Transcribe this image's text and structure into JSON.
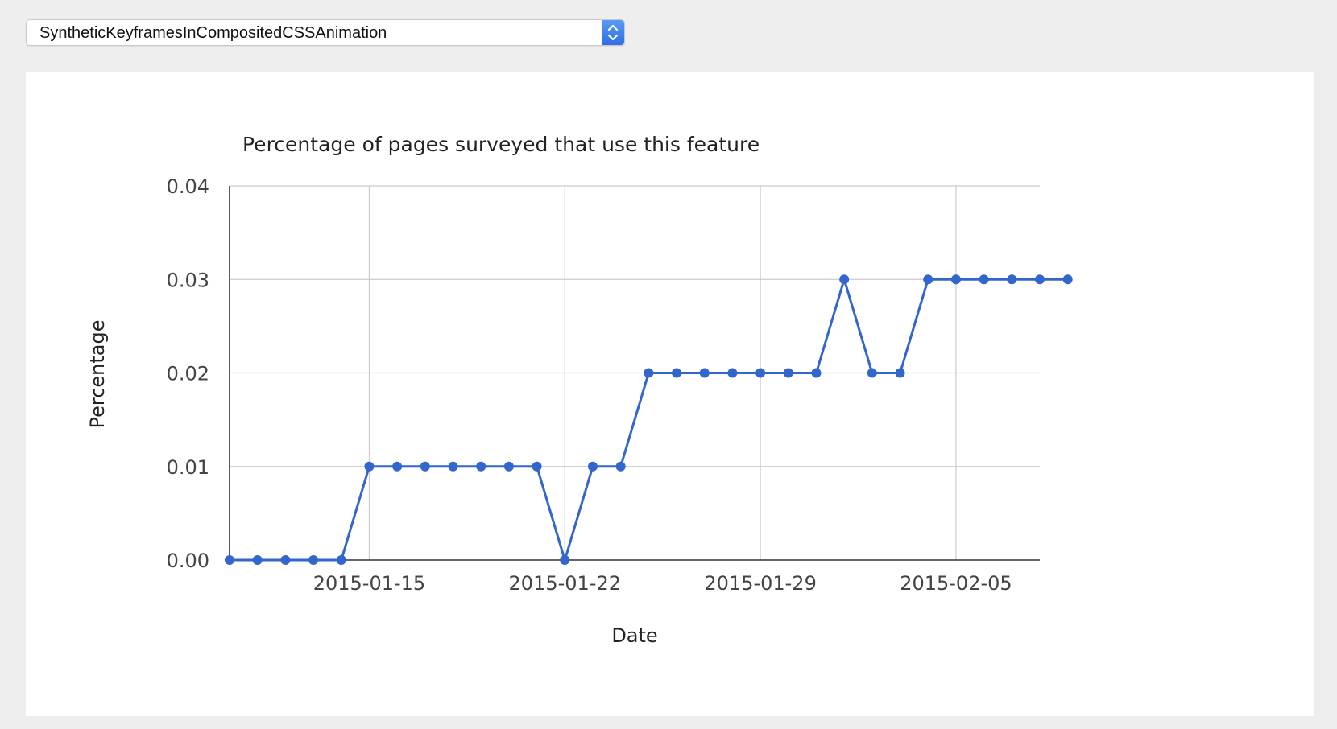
{
  "feature_select": {
    "selected": "SyntheticKeyframesInCompositedCSSAnimation",
    "stepper_icon": "up-down-chevron-icon"
  },
  "colors": {
    "line": "#3366cc",
    "grid": "#cccccc",
    "axis": "#333333",
    "text": "#222222",
    "tick_text": "#444444"
  },
  "chart_data": {
    "type": "line",
    "title": "Percentage of pages surveyed that use this feature",
    "xlabel": "Date",
    "ylabel": "Percentage",
    "ylim": [
      0,
      0.04
    ],
    "yticks": [
      "0.00",
      "0.01",
      "0.02",
      "0.03",
      "0.04"
    ],
    "xlim": [
      "2015-01-10",
      "2015-02-08"
    ],
    "xticks": [
      "2015-01-15",
      "2015-01-22",
      "2015-01-29",
      "2015-02-05"
    ],
    "grid": true,
    "legend": "none",
    "series": [
      {
        "x": [
          "2015-01-10",
          "2015-01-11",
          "2015-01-12",
          "2015-01-13",
          "2015-01-14",
          "2015-01-15",
          "2015-01-16",
          "2015-01-17",
          "2015-01-18",
          "2015-01-19",
          "2015-01-20",
          "2015-01-21",
          "2015-01-22",
          "2015-01-23",
          "2015-01-24",
          "2015-01-25",
          "2015-01-26",
          "2015-01-27",
          "2015-01-28",
          "2015-01-29",
          "2015-01-30",
          "2015-01-31",
          "2015-02-01",
          "2015-02-02",
          "2015-02-03",
          "2015-02-04",
          "2015-02-05",
          "2015-02-06",
          "2015-02-07",
          "2015-02-08",
          "2015-02-09"
        ],
        "values": [
          0.0,
          0.0,
          0.0,
          0.0,
          0.0,
          0.01,
          0.01,
          0.01,
          0.01,
          0.01,
          0.01,
          0.01,
          0.0,
          0.01,
          0.01,
          0.02,
          0.02,
          0.02,
          0.02,
          0.02,
          0.02,
          0.02,
          0.03,
          0.02,
          0.02,
          0.03,
          0.03,
          0.03,
          0.03,
          0.03,
          0.03
        ]
      }
    ]
  }
}
